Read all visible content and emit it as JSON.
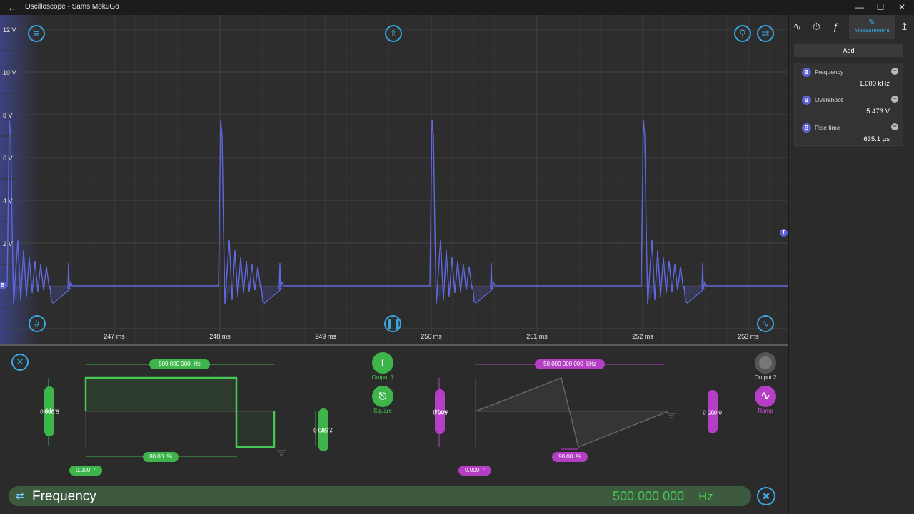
{
  "window": {
    "title": "Oscilloscope - Sams MokuGo"
  },
  "scope": {
    "y_labels": [
      "12 V",
      "10 V",
      "8 V",
      "6 V",
      "4 V",
      "2 V"
    ],
    "x_labels": [
      "247 ms",
      "248 ms",
      "249 ms",
      "250 ms",
      "251 ms",
      "252 ms",
      "253 ms"
    ],
    "channel_marker": "B",
    "trigger_marker": "T",
    "trace_color": "#5b63d6"
  },
  "panel": {
    "tabs": [
      {
        "icon": "waveform-icon",
        "label": ""
      },
      {
        "icon": "timer-icon",
        "label": ""
      },
      {
        "icon": "trigger-edge-icon",
        "label": ""
      },
      {
        "icon": "measurement-icon",
        "label": "Measurement"
      },
      {
        "icon": "probe-icon",
        "label": ""
      }
    ],
    "add_label": "Add",
    "measurements": [
      {
        "badge": "B",
        "name": "Frequency",
        "value": "1.000 kHz"
      },
      {
        "badge": "B",
        "name": "Overshoot",
        "value": "5.473 V"
      },
      {
        "badge": "B",
        "name": "Rise time",
        "value": "635.1 µs"
      }
    ]
  },
  "output1": {
    "frequency": "500.000 000",
    "frequency_unit": "Hz",
    "amplitude": "5.000 0",
    "amplitude_unit": "Vpp",
    "offset": "2.500 0",
    "offset_unit": "V",
    "duty": "80.00",
    "duty_unit": "%",
    "phase": "0.000",
    "phase_unit": "°",
    "label": "Output 1",
    "waveform": "Square",
    "color": "#3db54a"
  },
  "output2": {
    "frequency": "50.000 000 000",
    "frequency_unit": "kHz",
    "amplitude": "500.0",
    "amplitude_unit": "mVpp",
    "offset": "0.000 0",
    "offset_unit": "V",
    "symmetry": "90.00",
    "symmetry_unit": "%",
    "phase": "0.000",
    "phase_unit": "°",
    "label": "Output 2",
    "waveform": "Ramp",
    "color": "#b43fc4"
  },
  "editor": {
    "param_name": "Frequency",
    "param_value": "500.000 000",
    "param_unit": "Hz"
  }
}
